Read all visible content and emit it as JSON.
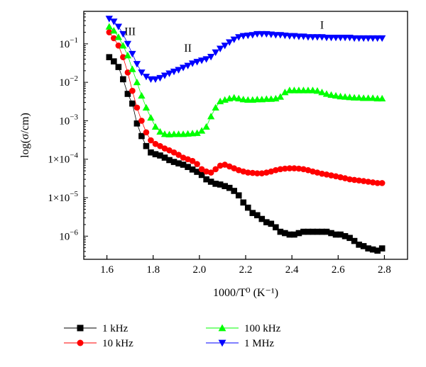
{
  "chart_data": {
    "type": "scatter",
    "title": "",
    "xlabel": "1000/T⁰ (K⁻¹)",
    "ylabel": "log(σ/cm)",
    "xlim": [
      1.5,
      2.9
    ],
    "ylim": [
      2.5e-07,
      0.7
    ],
    "yscale": "log",
    "grid": false,
    "legend_position": "bottom",
    "x_ticks": [
      1.6,
      1.8,
      2.0,
      2.2,
      2.4,
      2.6,
      2.8
    ],
    "x_tick_labels": [
      "1.6",
      "1.8",
      "2.0",
      "2.2",
      "2.4",
      "2.6",
      "2.8"
    ],
    "y_ticks": [
      1e-06,
      1e-05,
      0.0001,
      0.001,
      0.01,
      0.1
    ],
    "y_tick_labels": [
      {
        "base": "10",
        "exp": "−6"
      },
      {
        "base": "1×10",
        "exp": "−5"
      },
      {
        "base": "1×10",
        "exp": "−4"
      },
      {
        "base": "10",
        "exp": "−3"
      },
      {
        "base": "10",
        "exp": "−2"
      },
      {
        "base": "10",
        "exp": "−1"
      }
    ],
    "annotations": [
      {
        "text": "III",
        "x": 1.7,
        "y": 0.17
      },
      {
        "text": "II",
        "x": 1.95,
        "y": 0.062
      },
      {
        "text": "I",
        "x": 2.53,
        "y": 0.25
      }
    ],
    "series": [
      {
        "name": "1 kHz",
        "color": "#000000",
        "marker": "square",
        "x": [
          1.61,
          1.63,
          1.65,
          1.67,
          1.69,
          1.71,
          1.73,
          1.75,
          1.77,
          1.79,
          1.81,
          1.83,
          1.85,
          1.87,
          1.89,
          1.91,
          1.93,
          1.95,
          1.97,
          1.99,
          2.01,
          2.03,
          2.05,
          2.07,
          2.09,
          2.11,
          2.13,
          2.15,
          2.17,
          2.19,
          2.21,
          2.23,
          2.25,
          2.27,
          2.29,
          2.31,
          2.33,
          2.35,
          2.37,
          2.39,
          2.41,
          2.43,
          2.45,
          2.47,
          2.49,
          2.51,
          2.53,
          2.55,
          2.57,
          2.59,
          2.61,
          2.63,
          2.65,
          2.67,
          2.69,
          2.71,
          2.73,
          2.75,
          2.77,
          2.79
        ],
        "y": [
          0.045,
          0.035,
          0.025,
          0.012,
          0.005,
          0.0028,
          0.00085,
          0.0004,
          0.00022,
          0.00015,
          0.000135,
          0.000125,
          0.00011,
          9.5e-05,
          8.5e-05,
          7.8e-05,
          7.2e-05,
          6.3e-05,
          5.4e-05,
          4.7e-05,
          3.9e-05,
          3e-05,
          2.6e-05,
          2.3e-05,
          2.2e-05,
          2e-05,
          1.8e-05,
          1.5e-05,
          1.15e-05,
          7.5e-06,
          5.5e-06,
          4e-06,
          3.5e-06,
          2.8e-06,
          2.3e-06,
          2.1e-06,
          1.7e-06,
          1.3e-06,
          1.2e-06,
          1.1e-06,
          1.1e-06,
          1.2e-06,
          1.3e-06,
          1.3e-06,
          1.3e-06,
          1.3e-06,
          1.3e-06,
          1.3e-06,
          1.2e-06,
          1.1e-06,
          1.1e-06,
          1e-06,
          9e-07,
          7.5e-07,
          6e-07,
          5.5e-07,
          4.8e-07,
          4.5e-07,
          4.2e-07,
          4.8e-07
        ]
      },
      {
        "name": "10 kHz",
        "color": "#ff0000",
        "marker": "circle",
        "x": [
          1.61,
          1.63,
          1.65,
          1.67,
          1.69,
          1.71,
          1.73,
          1.75,
          1.77,
          1.79,
          1.81,
          1.83,
          1.85,
          1.87,
          1.89,
          1.91,
          1.93,
          1.95,
          1.97,
          1.99,
          2.01,
          2.03,
          2.05,
          2.07,
          2.09,
          2.11,
          2.13,
          2.15,
          2.17,
          2.19,
          2.21,
          2.23,
          2.25,
          2.27,
          2.29,
          2.31,
          2.33,
          2.35,
          2.37,
          2.39,
          2.41,
          2.43,
          2.45,
          2.47,
          2.49,
          2.51,
          2.53,
          2.55,
          2.57,
          2.59,
          2.61,
          2.63,
          2.65,
          2.67,
          2.69,
          2.71,
          2.73,
          2.75,
          2.77,
          2.79
        ],
        "y": [
          0.2,
          0.14,
          0.09,
          0.045,
          0.018,
          0.006,
          0.0022,
          0.001,
          0.0005,
          0.00031,
          0.00025,
          0.00022,
          0.00019,
          0.00017,
          0.00015,
          0.00013,
          0.00011,
          0.0001,
          9e-05,
          7.5e-05,
          5.5e-05,
          4.8e-05,
          4.5e-05,
          5.5e-05,
          6.8e-05,
          7.2e-05,
          6.5e-05,
          5.8e-05,
          5.2e-05,
          4.8e-05,
          4.5e-05,
          4.4e-05,
          4.3e-05,
          4.3e-05,
          4.5e-05,
          4.8e-05,
          5.2e-05,
          5.5e-05,
          5.7e-05,
          5.8e-05,
          5.8e-05,
          5.7e-05,
          5.5e-05,
          5.2e-05,
          4.8e-05,
          4.5e-05,
          4.2e-05,
          4e-05,
          3.8e-05,
          3.6e-05,
          3.4e-05,
          3.2e-05,
          3e-05,
          2.9e-05,
          2.8e-05,
          2.7e-05,
          2.6e-05,
          2.5e-05,
          2.4e-05,
          2.4e-05
        ]
      },
      {
        "name": "100 kHz",
        "color": "#00ff00",
        "marker": "triangle-up",
        "x": [
          1.61,
          1.63,
          1.65,
          1.67,
          1.69,
          1.71,
          1.73,
          1.75,
          1.77,
          1.79,
          1.81,
          1.83,
          1.85,
          1.87,
          1.89,
          1.91,
          1.93,
          1.95,
          1.97,
          1.99,
          2.01,
          2.03,
          2.05,
          2.07,
          2.09,
          2.11,
          2.13,
          2.15,
          2.17,
          2.19,
          2.21,
          2.23,
          2.25,
          2.27,
          2.29,
          2.31,
          2.33,
          2.35,
          2.37,
          2.39,
          2.41,
          2.43,
          2.45,
          2.47,
          2.49,
          2.51,
          2.53,
          2.55,
          2.57,
          2.59,
          2.61,
          2.63,
          2.65,
          2.67,
          2.69,
          2.71,
          2.73,
          2.75,
          2.77,
          2.79
        ],
        "y": [
          0.28,
          0.22,
          0.15,
          0.09,
          0.05,
          0.022,
          0.01,
          0.0045,
          0.0022,
          0.0012,
          0.0007,
          0.00052,
          0.00045,
          0.00044,
          0.00045,
          0.00045,
          0.00045,
          0.00046,
          0.00047,
          0.00048,
          0.00055,
          0.0007,
          0.0013,
          0.0022,
          0.0032,
          0.0035,
          0.0038,
          0.004,
          0.0038,
          0.0036,
          0.0035,
          0.0035,
          0.0036,
          0.0036,
          0.0037,
          0.0037,
          0.0038,
          0.0042,
          0.0055,
          0.0062,
          0.0062,
          0.0062,
          0.0062,
          0.0062,
          0.0062,
          0.006,
          0.0055,
          0.005,
          0.0047,
          0.0045,
          0.0043,
          0.0042,
          0.0041,
          0.004,
          0.004,
          0.0039,
          0.0039,
          0.0039,
          0.0038,
          0.0038
        ]
      },
      {
        "name": "1 MHz",
        "color": "#0000ff",
        "marker": "triangle-down",
        "x": [
          1.61,
          1.63,
          1.65,
          1.67,
          1.69,
          1.71,
          1.73,
          1.75,
          1.77,
          1.79,
          1.81,
          1.83,
          1.85,
          1.87,
          1.89,
          1.91,
          1.93,
          1.95,
          1.97,
          1.99,
          2.01,
          2.03,
          2.05,
          2.07,
          2.09,
          2.11,
          2.13,
          2.15,
          2.17,
          2.19,
          2.21,
          2.23,
          2.25,
          2.27,
          2.29,
          2.31,
          2.33,
          2.35,
          2.37,
          2.39,
          2.41,
          2.43,
          2.45,
          2.47,
          2.49,
          2.51,
          2.53,
          2.55,
          2.57,
          2.59,
          2.61,
          2.63,
          2.65,
          2.67,
          2.69,
          2.71,
          2.73,
          2.75,
          2.77,
          2.79
        ],
        "y": [
          0.45,
          0.38,
          0.28,
          0.18,
          0.1,
          0.055,
          0.03,
          0.018,
          0.014,
          0.012,
          0.012,
          0.013,
          0.015,
          0.017,
          0.019,
          0.021,
          0.024,
          0.027,
          0.031,
          0.034,
          0.037,
          0.04,
          0.046,
          0.06,
          0.075,
          0.09,
          0.11,
          0.13,
          0.15,
          0.16,
          0.165,
          0.17,
          0.18,
          0.18,
          0.18,
          0.175,
          0.17,
          0.17,
          0.165,
          0.16,
          0.16,
          0.155,
          0.155,
          0.15,
          0.15,
          0.15,
          0.15,
          0.145,
          0.145,
          0.145,
          0.145,
          0.145,
          0.145,
          0.14,
          0.14,
          0.14,
          0.14,
          0.14,
          0.14,
          0.14
        ]
      }
    ]
  }
}
